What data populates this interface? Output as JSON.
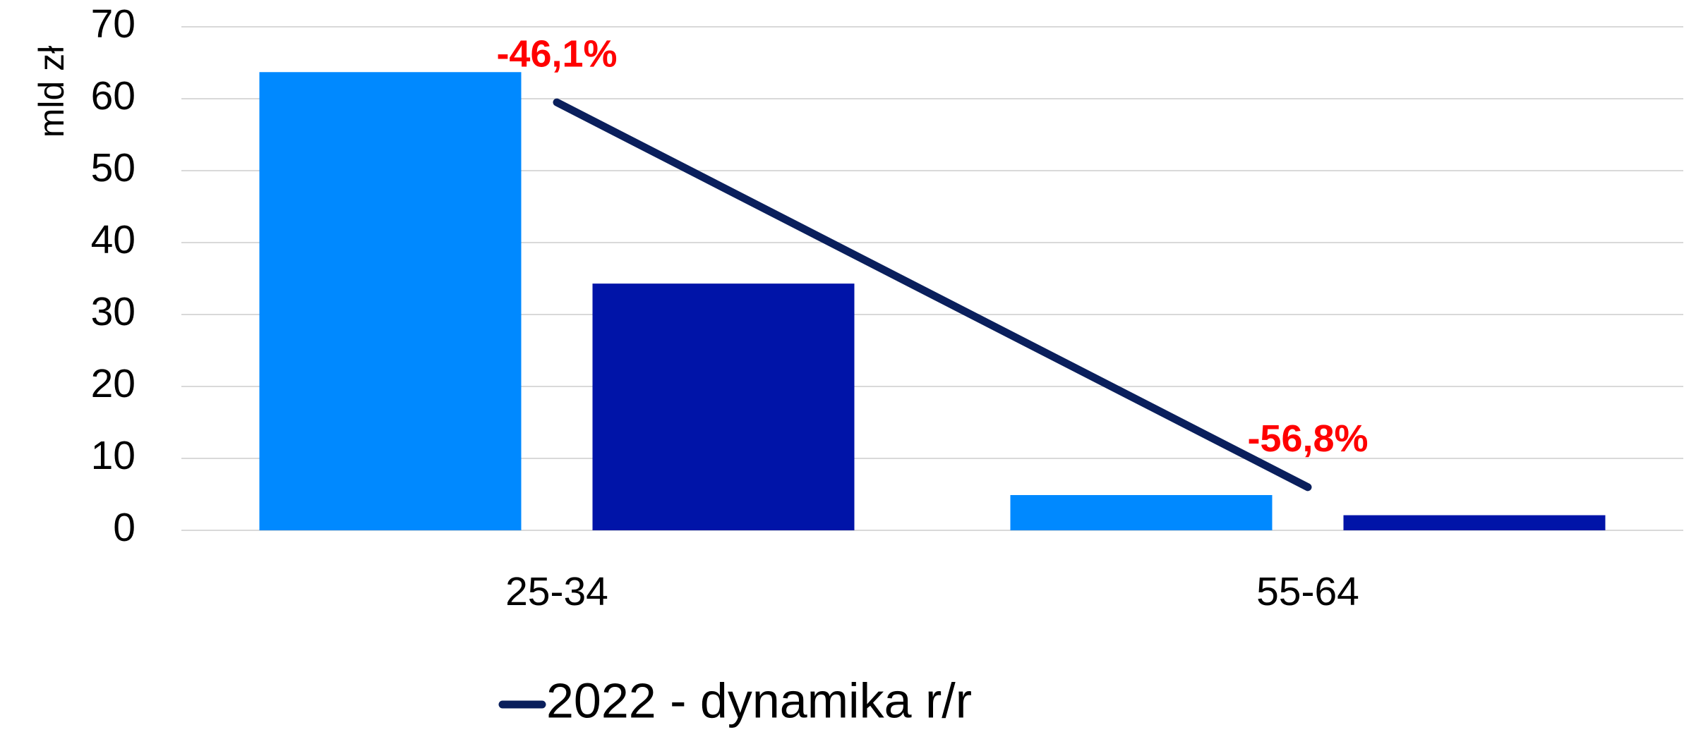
{
  "chart_data": {
    "type": "bar",
    "y_label": "mld zł",
    "categories": [
      "25-34",
      "55-64"
    ],
    "series": [
      {
        "color": "#0089ff",
        "values": [
          63.7,
          4.9
        ]
      },
      {
        "color": "#0014a8",
        "values": [
          34.3,
          2.1
        ]
      },
      {
        "name": "2022 - dynamika r/r",
        "type": "line",
        "axis": "y2",
        "color": "#0a1f5c",
        "values": [
          -46.1,
          -56.8
        ],
        "value_labels": [
          "-46,1%",
          "-56,8%"
        ]
      }
    ],
    "ylim": [
      0,
      70
    ],
    "yticks": [
      0,
      10,
      20,
      30,
      40,
      50,
      60,
      70
    ],
    "y2lim": [
      -58,
      -44
    ],
    "grid": true,
    "legend": "bottom"
  }
}
